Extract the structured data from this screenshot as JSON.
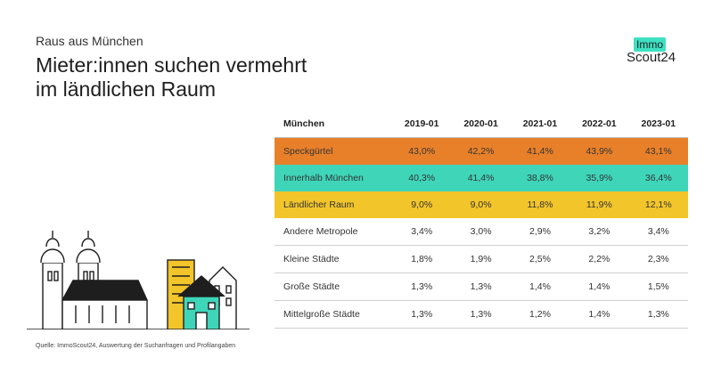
{
  "header": {
    "kicker": "Raus aus München",
    "title_line1": "Mieter:innen suchen vermehrt",
    "title_line2": "im ländlichen Raum"
  },
  "logo": {
    "tag": "Immo",
    "word": "Scout24"
  },
  "colors": {
    "speckguertel": "#e8802a",
    "innerhalb": "#3fd5b9",
    "laendlich": "#f2c52b",
    "logo_accent": "#3ee0c2"
  },
  "chart_data": {
    "type": "table",
    "columns": [
      "München",
      "2019-01",
      "2020-01",
      "2021-01",
      "2022-01",
      "2023-01"
    ],
    "rows": [
      {
        "label": "Speckgürtel",
        "values": [
          "43,0%",
          "42,2%",
          "41,4%",
          "43,9%",
          "43,1%"
        ],
        "highlight": "#e8802a"
      },
      {
        "label": "Innerhalb München",
        "values": [
          "40,3%",
          "41,4%",
          "38,8%",
          "35,9%",
          "36,4%"
        ],
        "highlight": "#3fd5b9"
      },
      {
        "label": "Ländlicher Raum",
        "values": [
          "9,0%",
          "9,0%",
          "11,8%",
          "11,9%",
          "12,1%"
        ],
        "highlight": "#f2c52b"
      },
      {
        "label": "Andere Metropole",
        "values": [
          "3,4%",
          "3,0%",
          "2,9%",
          "3,2%",
          "3,4%"
        ]
      },
      {
        "label": "Kleine Städte",
        "values": [
          "1,8%",
          "1,9%",
          "2,5%",
          "2,2%",
          "2,3%"
        ]
      },
      {
        "label": "Große Städte",
        "values": [
          "1,3%",
          "1,3%",
          "1,4%",
          "1,4%",
          "1,5%"
        ]
      },
      {
        "label": "Mittelgroße Städte",
        "values": [
          "1,3%",
          "1,3%",
          "1,2%",
          "1,4%",
          "1,3%"
        ]
      }
    ]
  },
  "footer": {
    "source": "Quelle: ImmoScout24, Auswertung der Suchanfragen und Profilangaben"
  }
}
